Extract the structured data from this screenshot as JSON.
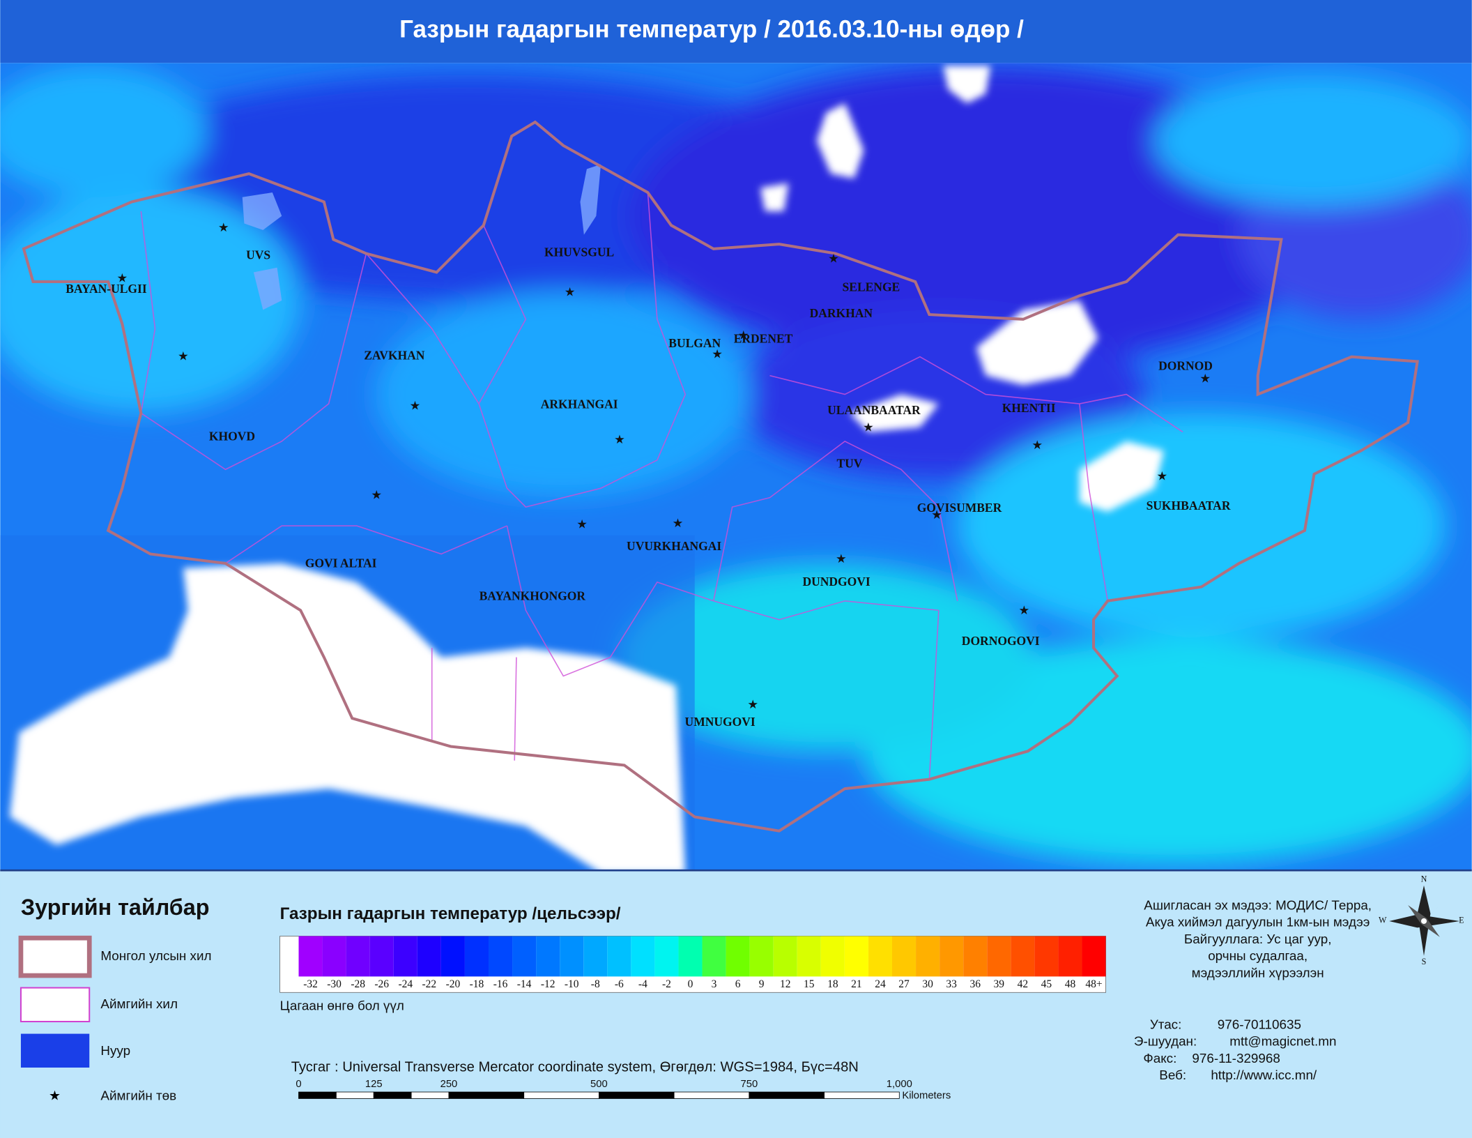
{
  "header": {
    "title": "Газрын гадаргын температур / 2016.03.10-ны өдөр /"
  },
  "map": {
    "places": [
      "BAYAN-ULGII",
      "UVS",
      "KHUVSGUL",
      "SELENGE",
      "DARKHAN",
      "ERDENET",
      "BULGAN",
      "ZAVKHAN",
      "DORNOD",
      "ARKHANGAI",
      "ULAANBAATAR",
      "KHENTII",
      "KHOVD",
      "TUV",
      "GOVISUMBER",
      "SUKHBAATAR",
      "UVURKHANGAI",
      "GOVI ALTAI",
      "DUNDGOVI",
      "BAYANKHONGOR",
      "DORNOGOVI",
      "UMNUGOVI"
    ]
  },
  "legend": {
    "title": "Зургийн тайлбар",
    "items": [
      "Монгол улсын хил",
      "Аймгийн хил",
      "Нуур",
      "Аймгийн төв"
    ]
  },
  "colorbar": {
    "title": "Газрын гадаргын температур /цельсээр/",
    "labels": [
      "-32",
      "-30",
      "-28",
      "-26",
      "-24",
      "-22",
      "-20",
      "-18",
      "-16",
      "-14",
      "-12",
      "-10",
      "-8",
      "-6",
      "-4",
      "-2",
      "0",
      "3",
      "6",
      "9",
      "12",
      "15",
      "18",
      "21",
      "24",
      "27",
      "30",
      "33",
      "36",
      "39",
      "42",
      "45",
      "48",
      "48+"
    ],
    "colors": [
      "#a000ff",
      "#8a00ff",
      "#7000ff",
      "#5a00ff",
      "#3c00ff",
      "#1e00ff",
      "#0010ff",
      "#0030ff",
      "#0048ff",
      "#0060ff",
      "#0078ff",
      "#0090ff",
      "#00a8ff",
      "#00c0ff",
      "#00e0ff",
      "#00f4f0",
      "#00ffb0",
      "#40ff40",
      "#70ff00",
      "#98ff00",
      "#b8ff00",
      "#d8ff00",
      "#f0ff00",
      "#ffff00",
      "#ffe000",
      "#ffc800",
      "#ffb000",
      "#ff9800",
      "#ff8000",
      "#ff6800",
      "#ff5000",
      "#ff3800",
      "#ff2000",
      "#ff0000"
    ],
    "note": "Цагаан өнгө бол үүл"
  },
  "projection": "Тусгаг : Universal Transverse Mercator coordinate system, Өгөгдөл: WGS=1984, Бүс=48N",
  "scale": {
    "labels": [
      "0",
      "125",
      "250",
      "500",
      "750",
      "1,000"
    ],
    "unit": "Kilometers"
  },
  "info": [
    "Ашигласан эх мэдээ: МОДИС/ Терра,",
    "Акуа хиймэл дагуулын 1км-ын мэдээ",
    "Байгууллага: Ус цаг уур,",
    "орчны судалгаа,",
    "мэдээллийн хүрээлэн"
  ],
  "contacts": [
    [
      "Утас:",
      "976-70110635"
    ],
    [
      "Э-шуудан:",
      "mtt@magicnet.mn"
    ],
    [
      "Факс:",
      "976-11-329968"
    ],
    [
      "Веб:",
      "http://www.icc.mn/"
    ]
  ],
  "compass": [
    "N",
    "E",
    "S",
    "W"
  ]
}
